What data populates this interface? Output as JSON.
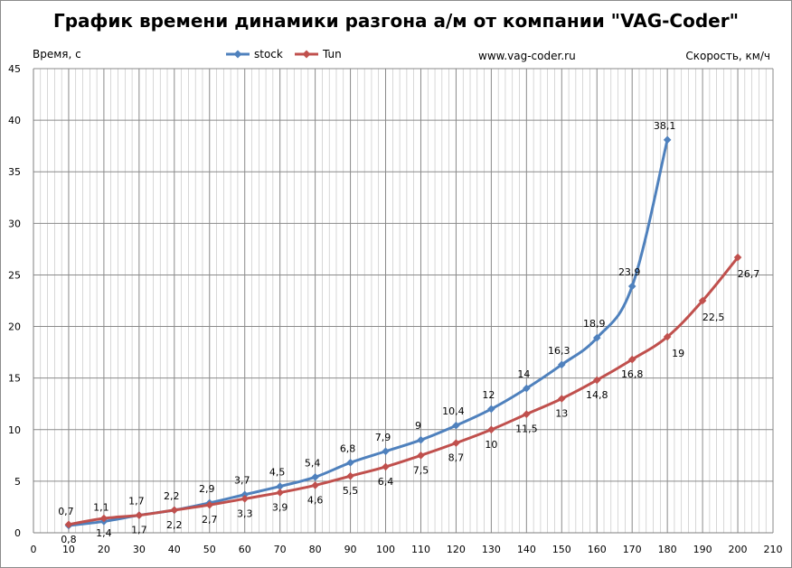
{
  "chart_data": {
    "type": "line",
    "title": "График времени динамики разгона а/м от компании \"VAG-Coder\"",
    "ylabel": "Время, с",
    "xlabel": "Скорость, км/ч",
    "annotation": "www.vag-coder.ru",
    "xlim": [
      0,
      210
    ],
    "ylim": [
      0,
      45
    ],
    "x_ticks": [
      "0",
      "10",
      "20",
      "30",
      "40",
      "50",
      "60",
      "70",
      "80",
      "90",
      "100",
      "110",
      "120",
      "130",
      "140",
      "150",
      "160",
      "170",
      "180",
      "190",
      "200",
      "210"
    ],
    "y_ticks": [
      "0",
      "5",
      "10",
      "15",
      "20",
      "25",
      "30",
      "35",
      "40",
      "45"
    ],
    "grid": true,
    "legend_position": "top-center",
    "series": [
      {
        "name": "stock",
        "color": "#4f81bd",
        "marker": "diamond",
        "x": [
          10,
          20,
          30,
          40,
          50,
          60,
          70,
          80,
          90,
          100,
          110,
          120,
          130,
          140,
          150,
          160,
          170,
          180
        ],
        "values": [
          0.7,
          1.1,
          1.7,
          2.2,
          2.9,
          3.7,
          4.5,
          5.4,
          6.8,
          7.9,
          9,
          10.4,
          12,
          14,
          16.3,
          18.9,
          23.9,
          38.1
        ],
        "labels": [
          "0,7",
          "1,1",
          "1,7",
          "2,2",
          "2,9",
          "3,7",
          "4,5",
          "5,4",
          "6,8",
          "7,9",
          "9",
          "10,4",
          "12",
          "14",
          "16,3",
          "18,9",
          "23,9",
          "38,1"
        ]
      },
      {
        "name": "Tun",
        "color": "#c0504d",
        "marker": "diamond",
        "x": [
          10,
          20,
          30,
          40,
          50,
          60,
          70,
          80,
          90,
          100,
          110,
          120,
          130,
          140,
          150,
          160,
          170,
          180,
          190,
          200
        ],
        "values": [
          0.8,
          1.4,
          1.7,
          2.2,
          2.7,
          3.3,
          3.9,
          4.6,
          5.5,
          6.4,
          7.5,
          8.7,
          10,
          11.5,
          13,
          14.8,
          16.8,
          19,
          22.5,
          26.7
        ],
        "labels": [
          "0,8",
          "1,4",
          "1,7",
          "2,2",
          "2,7",
          "3,3",
          "3,9",
          "4,6",
          "5,5",
          "6,4",
          "7,5",
          "8,7",
          "10",
          "11,5",
          "13",
          "14,8",
          "16,8",
          "19",
          "22,5",
          "26,7"
        ]
      }
    ]
  }
}
